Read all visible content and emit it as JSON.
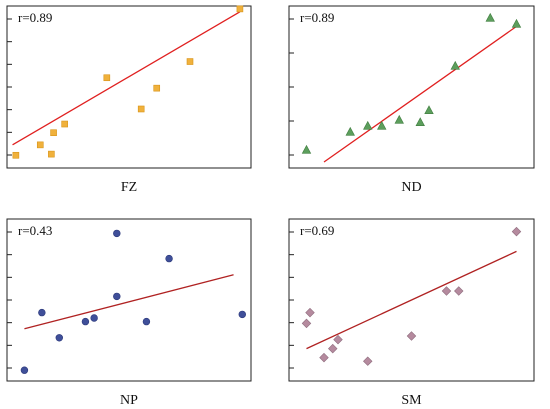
{
  "chart_data": [
    {
      "type": "scatter",
      "xlabel": "FZ",
      "annotation": "r=0.89",
      "marker": "square",
      "marker_color": "#f0b13c",
      "marker_stroke": "#d89418",
      "fit_color": "#e02020",
      "points": [
        [
          0.8,
          1.2
        ],
        [
          3.0,
          3.0
        ],
        [
          4.0,
          1.4
        ],
        [
          4.2,
          5.1
        ],
        [
          5.2,
          6.6
        ],
        [
          9.0,
          14.6
        ],
        [
          12.1,
          9.2
        ],
        [
          13.5,
          12.8
        ],
        [
          16.5,
          17.4
        ],
        [
          21.0,
          26.5
        ]
      ],
      "fit_line": [
        [
          0.5,
          3.0
        ],
        [
          21.0,
          26.0
        ]
      ],
      "xlim": [
        0,
        22
      ],
      "ylim": [
        -1,
        27
      ]
    },
    {
      "type": "scatter",
      "xlabel": "ND",
      "annotation": "r=0.89",
      "marker": "triangle",
      "marker_color": "#5c9e5c",
      "marker_stroke": "#3f7d3f",
      "fit_color": "#e02020",
      "points": [
        [
          1.0,
          1.0
        ],
        [
          3.5,
          2.5
        ],
        [
          4.5,
          3.0
        ],
        [
          5.3,
          3.0
        ],
        [
          6.3,
          3.5
        ],
        [
          7.5,
          3.3
        ],
        [
          8.0,
          4.3
        ],
        [
          9.5,
          8.0
        ],
        [
          11.5,
          12.0
        ],
        [
          13.0,
          11.5
        ]
      ],
      "fit_line": [
        [
          2.0,
          0.0
        ],
        [
          13.0,
          11.3
        ]
      ],
      "xlim": [
        0,
        14
      ],
      "ylim": [
        -0.5,
        13
      ]
    },
    {
      "type": "scatter",
      "xlabel": "NP",
      "annotation": "r=0.43",
      "marker": "circle",
      "marker_color": "#3f4f99",
      "marker_stroke": "#2b387a",
      "fit_color": "#b02222",
      "points": [
        [
          1.0,
          0.6
        ],
        [
          2.0,
          3.8
        ],
        [
          3.0,
          2.4
        ],
        [
          4.5,
          3.3
        ],
        [
          5.0,
          3.5
        ],
        [
          6.3,
          4.7
        ],
        [
          6.3,
          8.2
        ],
        [
          8.0,
          3.3
        ],
        [
          9.3,
          6.8
        ],
        [
          13.5,
          3.7
        ]
      ],
      "fit_line": [
        [
          1.0,
          2.9
        ],
        [
          13.0,
          5.9
        ]
      ],
      "xlim": [
        0,
        14
      ],
      "ylim": [
        0,
        9
      ]
    },
    {
      "type": "scatter",
      "xlabel": "SM",
      "annotation": "r=0.69",
      "marker": "diamond",
      "marker_color": "#b58a9e",
      "marker_stroke": "#8e6c7d",
      "fit_color": "#b02222",
      "points": [
        [
          1.0,
          3.2
        ],
        [
          1.2,
          3.8
        ],
        [
          2.0,
          1.3
        ],
        [
          2.5,
          1.8
        ],
        [
          2.8,
          2.3
        ],
        [
          4.5,
          1.1
        ],
        [
          7.0,
          2.5
        ],
        [
          9.0,
          5.0
        ],
        [
          9.7,
          5.0
        ],
        [
          13.0,
          8.3
        ]
      ],
      "fit_line": [
        [
          1.0,
          1.8
        ],
        [
          13.0,
          7.2
        ]
      ],
      "xlim": [
        0,
        14
      ],
      "ylim": [
        0,
        9
      ]
    }
  ]
}
